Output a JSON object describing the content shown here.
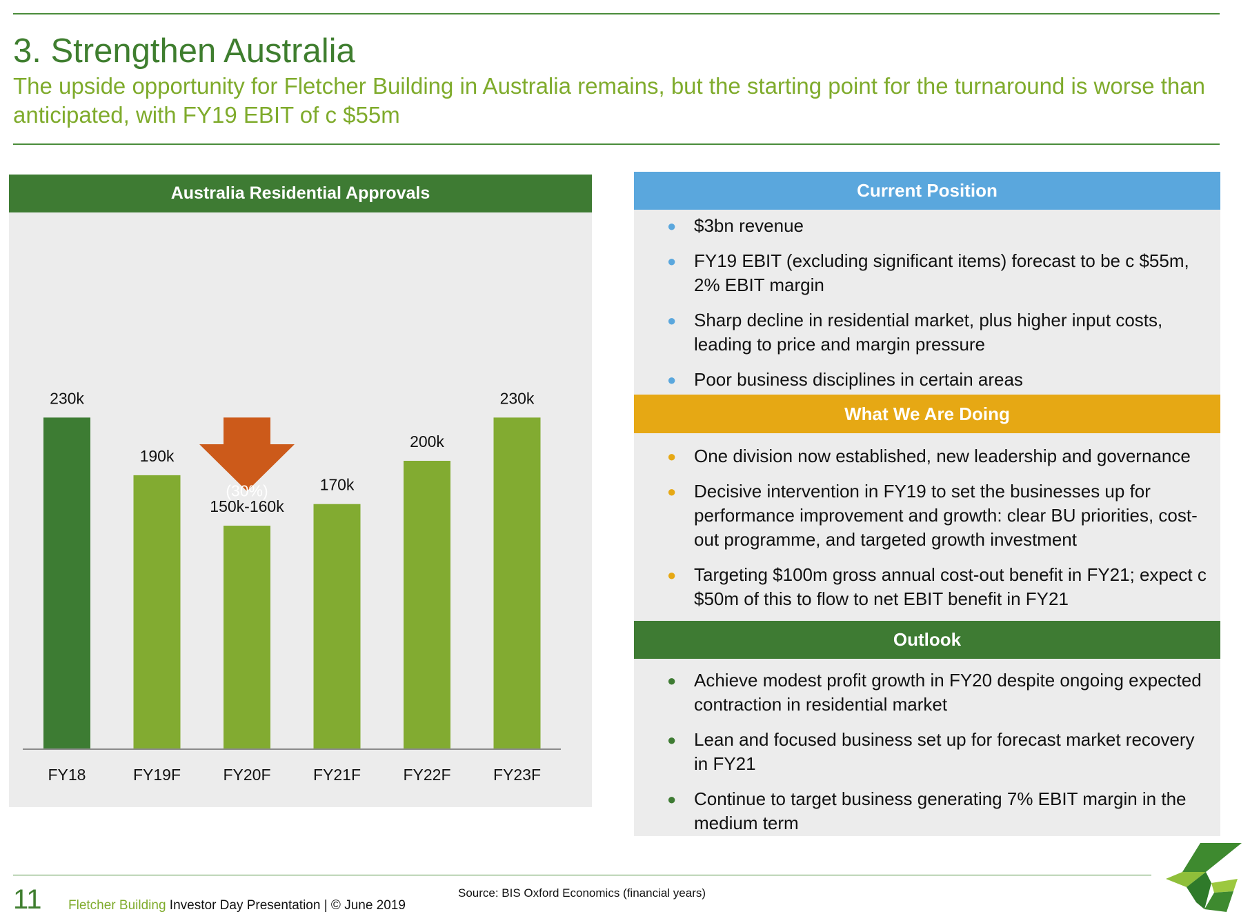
{
  "header": {
    "title": "3. Strengthen Australia",
    "subtitle": "The upside opportunity for Fletcher Building in Australia remains, but the starting point for the turnaround is worse than anticipated, with FY19 EBIT of c $55m"
  },
  "chart_data": {
    "type": "bar",
    "title": "Australia Residential Approvals",
    "xlabel": "",
    "ylabel": "",
    "ylim": [
      0,
      250
    ],
    "categories": [
      "FY18",
      "FY19F",
      "FY20F",
      "FY21F",
      "FY22F",
      "FY23F"
    ],
    "values": [
      230,
      190,
      155,
      170,
      200,
      230
    ],
    "data_labels": [
      "230k",
      "190k",
      "150k-160k",
      "170k",
      "200k",
      "230k"
    ],
    "bar_colors": [
      "#3d7c33",
      "#82ab31",
      "#82ab31",
      "#82ab31",
      "#82ab31",
      "#82ab31"
    ],
    "annotation": {
      "text": "(30%)",
      "from_category": "FY18",
      "to_category": "FY20F",
      "color": "#cc5a1a"
    }
  },
  "panels": {
    "current": {
      "title": "Current Position",
      "color": "#5aa7dd",
      "bullets": [
        "$3bn revenue",
        "FY19 EBIT (excluding significant items) forecast to be c $55m, 2% EBIT margin",
        "Sharp decline in residential market, plus higher input costs, leading to price and margin pressure",
        "Poor business disciplines in certain areas"
      ]
    },
    "doing": {
      "title": "What We Are Doing",
      "color": "#e6a814",
      "bullets": [
        "One division now established, new leadership and governance",
        "Decisive intervention in FY19 to set the businesses up for performance improvement and growth: clear BU priorities, cost-out programme, and targeted growth investment",
        "Targeting $100m gross annual cost-out benefit in FY21; expect c $50m of this to flow to net EBIT benefit in FY21"
      ]
    },
    "outlook": {
      "title": "Outlook",
      "color": "#3e7b33",
      "bullets": [
        "Achieve modest profit growth in FY20 despite ongoing expected contraction in residential market",
        "Lean and focused business set up for forecast market recovery in FY21",
        "Continue to target business generating 7% EBIT margin in the medium term"
      ]
    }
  },
  "footer": {
    "page_number": "11",
    "brand": "Fletcher Building",
    "presentation": " Investor Day Presentation | © June 2019",
    "source": "Source: BIS Oxford Economics  (financial years)"
  }
}
